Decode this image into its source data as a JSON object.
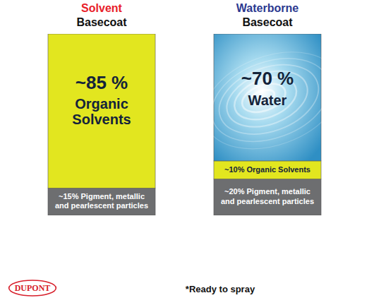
{
  "chart_data": {
    "type": "bar",
    "stacked": true,
    "data_labels": true,
    "tick_labels": false,
    "categories": [
      "Solvent Basecoat",
      "Waterborne Basecoat"
    ],
    "series": [
      {
        "name": "Pigment, metallic and pearlescent particles",
        "color": "#6d6e70",
        "values": [
          15,
          20
        ],
        "value_labels": [
          "~15%",
          "~20%"
        ]
      },
      {
        "name": "Organic Solvents",
        "color": "#e2e61f",
        "values": [
          85,
          10
        ],
        "value_labels": [
          "~85 %",
          "~10%"
        ]
      },
      {
        "name": "Water",
        "color": "#5db3dc",
        "values": [
          null,
          70
        ],
        "value_labels": [
          null,
          "~70 %"
        ]
      }
    ],
    "ylim": [
      0,
      100
    ],
    "annotations": [
      "DUPONT",
      "*Ready to spray"
    ]
  }
}
